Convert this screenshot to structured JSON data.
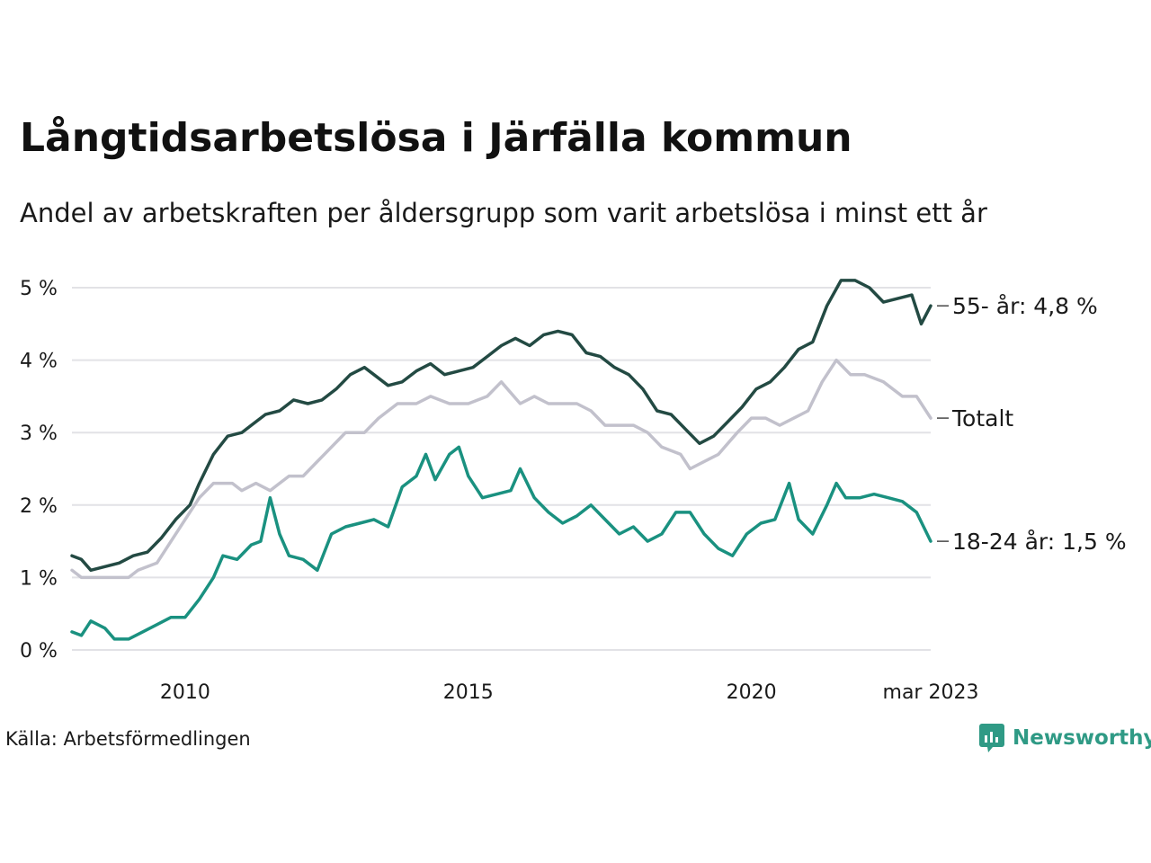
{
  "title": "Långtidsarbetslösa i Järfälla kommun",
  "subtitle": "Andel av arbetskraften per åldersgrupp som varit arbetslösa i minst ett år",
  "source": "Källa: Arbetsförmedlingen",
  "brand": "Newsworthy",
  "colors": {
    "old": "#234a43",
    "total": "#c2c1cc",
    "young": "#1a9180",
    "grid": "#e2e2e6",
    "brand": "#2f9a85"
  },
  "chart_data": {
    "type": "line",
    "ylim": [
      0,
      5
    ],
    "yticks": [
      0,
      1,
      2,
      3,
      4,
      5
    ],
    "ytick_labels": [
      "0 %",
      "1 %",
      "2 %",
      "3 %",
      "4 %",
      "5 %"
    ],
    "x_start": "2008-01",
    "x_end": "2023-03",
    "xticks": [
      {
        "date": "2010-01",
        "label": "2010"
      },
      {
        "date": "2015-01",
        "label": "2015"
      },
      {
        "date": "2020-01",
        "label": "2020"
      },
      {
        "date": "2023-03",
        "label": "mar 2023"
      }
    ],
    "series": [
      {
        "key": "total",
        "name": "Totalt",
        "label": "Totalt",
        "points": [
          [
            "2008-01",
            1.1
          ],
          [
            "2008-03",
            1.0
          ],
          [
            "2009-01",
            1.0
          ],
          [
            "2009-03",
            1.1
          ],
          [
            "2009-07",
            1.2
          ],
          [
            "2009-10",
            1.5
          ],
          [
            "2010-01",
            1.8
          ],
          [
            "2010-04",
            2.1
          ],
          [
            "2010-07",
            2.3
          ],
          [
            "2010-11",
            2.3
          ],
          [
            "2011-01",
            2.2
          ],
          [
            "2011-04",
            2.3
          ],
          [
            "2011-07",
            2.2
          ],
          [
            "2011-09",
            2.3
          ],
          [
            "2011-11",
            2.4
          ],
          [
            "2012-02",
            2.4
          ],
          [
            "2012-05",
            2.6
          ],
          [
            "2012-08",
            2.8
          ],
          [
            "2012-11",
            3.0
          ],
          [
            "2013-03",
            3.0
          ],
          [
            "2013-06",
            3.2
          ],
          [
            "2013-10",
            3.4
          ],
          [
            "2014-02",
            3.4
          ],
          [
            "2014-05",
            3.5
          ],
          [
            "2014-09",
            3.4
          ],
          [
            "2015-01",
            3.4
          ],
          [
            "2015-05",
            3.5
          ],
          [
            "2015-08",
            3.7
          ],
          [
            "2015-12",
            3.4
          ],
          [
            "2016-03",
            3.5
          ],
          [
            "2016-06",
            3.4
          ],
          [
            "2016-12",
            3.4
          ],
          [
            "2017-03",
            3.3
          ],
          [
            "2017-06",
            3.1
          ],
          [
            "2017-12",
            3.1
          ],
          [
            "2018-03",
            3.0
          ],
          [
            "2018-06",
            2.8
          ],
          [
            "2018-10",
            2.7
          ],
          [
            "2018-12",
            2.5
          ],
          [
            "2019-03",
            2.6
          ],
          [
            "2019-06",
            2.7
          ],
          [
            "2019-10",
            3.0
          ],
          [
            "2020-01",
            3.2
          ],
          [
            "2020-04",
            3.2
          ],
          [
            "2020-07",
            3.1
          ],
          [
            "2020-10",
            3.2
          ],
          [
            "2021-01",
            3.3
          ],
          [
            "2021-04",
            3.7
          ],
          [
            "2021-07",
            4.0
          ],
          [
            "2021-10",
            3.8
          ],
          [
            "2022-01",
            3.8
          ],
          [
            "2022-05",
            3.7
          ],
          [
            "2022-09",
            3.5
          ],
          [
            "2022-12",
            3.5
          ],
          [
            "2023-03",
            3.2
          ]
        ]
      },
      {
        "key": "old",
        "name": "55- år",
        "label": "55- år: 4,8 %",
        "points": [
          [
            "2008-01",
            1.3
          ],
          [
            "2008-03",
            1.25
          ],
          [
            "2008-05",
            1.1
          ],
          [
            "2008-08",
            1.15
          ],
          [
            "2008-11",
            1.2
          ],
          [
            "2009-02",
            1.3
          ],
          [
            "2009-05",
            1.35
          ],
          [
            "2009-08",
            1.55
          ],
          [
            "2009-11",
            1.8
          ],
          [
            "2010-02",
            2.0
          ],
          [
            "2010-04",
            2.3
          ],
          [
            "2010-07",
            2.7
          ],
          [
            "2010-10",
            2.95
          ],
          [
            "2011-01",
            3.0
          ],
          [
            "2011-03",
            3.1
          ],
          [
            "2011-06",
            3.25
          ],
          [
            "2011-09",
            3.3
          ],
          [
            "2011-12",
            3.45
          ],
          [
            "2012-03",
            3.4
          ],
          [
            "2012-06",
            3.45
          ],
          [
            "2012-09",
            3.6
          ],
          [
            "2012-12",
            3.8
          ],
          [
            "2013-03",
            3.9
          ],
          [
            "2013-05",
            3.8
          ],
          [
            "2013-08",
            3.65
          ],
          [
            "2013-11",
            3.7
          ],
          [
            "2014-02",
            3.85
          ],
          [
            "2014-05",
            3.95
          ],
          [
            "2014-08",
            3.8
          ],
          [
            "2014-11",
            3.85
          ],
          [
            "2015-02",
            3.9
          ],
          [
            "2015-05",
            4.05
          ],
          [
            "2015-08",
            4.2
          ],
          [
            "2015-11",
            4.3
          ],
          [
            "2016-02",
            4.2
          ],
          [
            "2016-05",
            4.35
          ],
          [
            "2016-08",
            4.4
          ],
          [
            "2016-11",
            4.35
          ],
          [
            "2017-02",
            4.1
          ],
          [
            "2017-05",
            4.05
          ],
          [
            "2017-08",
            3.9
          ],
          [
            "2017-11",
            3.8
          ],
          [
            "2018-02",
            3.6
          ],
          [
            "2018-05",
            3.3
          ],
          [
            "2018-08",
            3.25
          ],
          [
            "2018-11",
            3.05
          ],
          [
            "2019-02",
            2.85
          ],
          [
            "2019-05",
            2.95
          ],
          [
            "2019-08",
            3.15
          ],
          [
            "2019-11",
            3.35
          ],
          [
            "2020-02",
            3.6
          ],
          [
            "2020-05",
            3.7
          ],
          [
            "2020-08",
            3.9
          ],
          [
            "2020-11",
            4.15
          ],
          [
            "2021-02",
            4.25
          ],
          [
            "2021-05",
            4.75
          ],
          [
            "2021-08",
            5.1
          ],
          [
            "2021-11",
            5.1
          ],
          [
            "2022-02",
            5.0
          ],
          [
            "2022-05",
            4.8
          ],
          [
            "2022-08",
            4.85
          ],
          [
            "2022-11",
            4.9
          ],
          [
            "2023-01",
            4.5
          ],
          [
            "2023-03",
            4.75
          ]
        ]
      },
      {
        "key": "young",
        "name": "18-24 år",
        "label": "18-24 år: 1,5 %",
        "points": [
          [
            "2008-01",
            0.25
          ],
          [
            "2008-03",
            0.2
          ],
          [
            "2008-05",
            0.4
          ],
          [
            "2008-08",
            0.3
          ],
          [
            "2008-10",
            0.15
          ],
          [
            "2009-01",
            0.15
          ],
          [
            "2009-04",
            0.25
          ],
          [
            "2009-07",
            0.35
          ],
          [
            "2009-10",
            0.45
          ],
          [
            "2010-01",
            0.45
          ],
          [
            "2010-04",
            0.7
          ],
          [
            "2010-07",
            1.0
          ],
          [
            "2010-09",
            1.3
          ],
          [
            "2010-12",
            1.25
          ],
          [
            "2011-03",
            1.45
          ],
          [
            "2011-05",
            1.5
          ],
          [
            "2011-07",
            2.1
          ],
          [
            "2011-09",
            1.6
          ],
          [
            "2011-11",
            1.3
          ],
          [
            "2012-02",
            1.25
          ],
          [
            "2012-05",
            1.1
          ],
          [
            "2012-08",
            1.6
          ],
          [
            "2012-11",
            1.7
          ],
          [
            "2013-02",
            1.75
          ],
          [
            "2013-05",
            1.8
          ],
          [
            "2013-08",
            1.7
          ],
          [
            "2013-11",
            2.25
          ],
          [
            "2014-02",
            2.4
          ],
          [
            "2014-04",
            2.7
          ],
          [
            "2014-06",
            2.35
          ],
          [
            "2014-09",
            2.7
          ],
          [
            "2014-11",
            2.8
          ],
          [
            "2015-01",
            2.4
          ],
          [
            "2015-04",
            2.1
          ],
          [
            "2015-07",
            2.15
          ],
          [
            "2015-10",
            2.2
          ],
          [
            "2015-12",
            2.5
          ],
          [
            "2016-03",
            2.1
          ],
          [
            "2016-06",
            1.9
          ],
          [
            "2016-09",
            1.75
          ],
          [
            "2016-12",
            1.85
          ],
          [
            "2017-03",
            2.0
          ],
          [
            "2017-06",
            1.8
          ],
          [
            "2017-09",
            1.6
          ],
          [
            "2017-12",
            1.7
          ],
          [
            "2018-03",
            1.5
          ],
          [
            "2018-06",
            1.6
          ],
          [
            "2018-09",
            1.9
          ],
          [
            "2018-12",
            1.9
          ],
          [
            "2019-03",
            1.6
          ],
          [
            "2019-06",
            1.4
          ],
          [
            "2019-09",
            1.3
          ],
          [
            "2019-12",
            1.6
          ],
          [
            "2020-03",
            1.75
          ],
          [
            "2020-06",
            1.8
          ],
          [
            "2020-09",
            2.3
          ],
          [
            "2020-11",
            1.8
          ],
          [
            "2021-02",
            1.6
          ],
          [
            "2021-05",
            2.0
          ],
          [
            "2021-07",
            2.3
          ],
          [
            "2021-09",
            2.1
          ],
          [
            "2021-12",
            2.1
          ],
          [
            "2022-03",
            2.15
          ],
          [
            "2022-06",
            2.1
          ],
          [
            "2022-09",
            2.05
          ],
          [
            "2022-12",
            1.9
          ],
          [
            "2023-03",
            1.5
          ]
        ]
      }
    ]
  }
}
